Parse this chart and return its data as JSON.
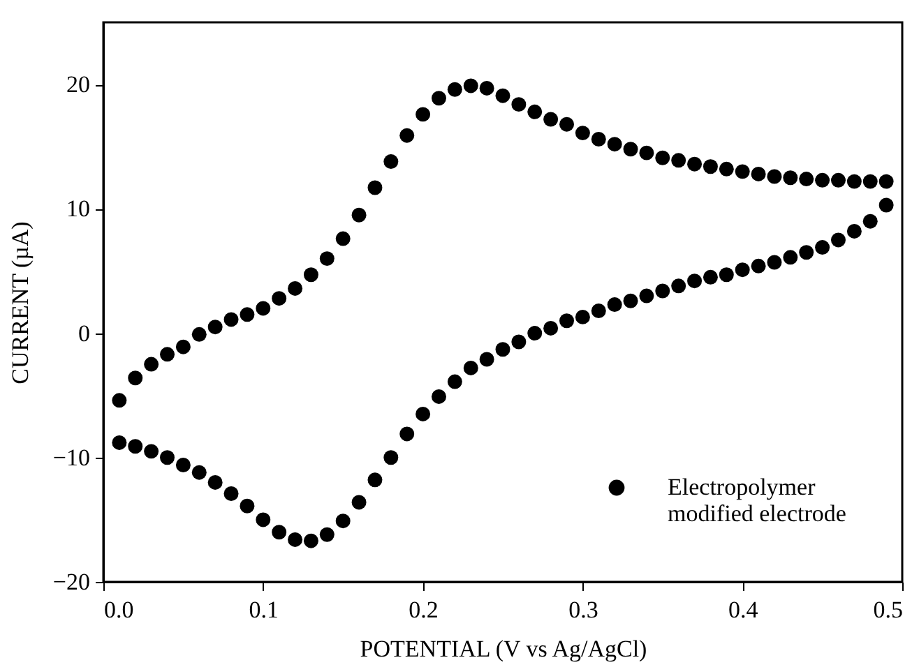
{
  "chart_data": {
    "type": "scatter",
    "xlabel": "POTENTIAL (V vs Ag/AgCl)",
    "ylabel": "CURRENT (µA)",
    "xlim": [
      0,
      0.5
    ],
    "xticks": [
      {
        "value": 0,
        "label": "0.0"
      },
      0.1,
      0.2,
      0.3,
      0.4,
      0.5
    ],
    "ylim": [
      -20,
      25
    ],
    "yticks": [
      -20,
      -10,
      0,
      10,
      20
    ],
    "grid": false,
    "legend": "bottom right",
    "marker": "circle",
    "series": [
      {
        "name": "Electropolymer\nmodified electrode",
        "color": "#000000",
        "x": [
          0.01,
          0.02,
          0.03,
          0.04,
          0.05,
          0.06,
          0.07,
          0.08,
          0.09,
          0.1,
          0.11,
          0.12,
          0.13,
          0.14,
          0.15,
          0.16,
          0.17,
          0.18,
          0.19,
          0.2,
          0.21,
          0.22,
          0.23,
          0.24,
          0.25,
          0.26,
          0.27,
          0.28,
          0.29,
          0.3,
          0.31,
          0.32,
          0.33,
          0.34,
          0.35,
          0.36,
          0.37,
          0.38,
          0.39,
          0.4,
          0.41,
          0.42,
          0.43,
          0.44,
          0.45,
          0.46,
          0.47,
          0.48,
          0.49,
          0.49,
          0.48,
          0.47,
          0.46,
          0.45,
          0.44,
          0.43,
          0.42,
          0.41,
          0.4,
          0.39,
          0.38,
          0.37,
          0.36,
          0.35,
          0.34,
          0.33,
          0.32,
          0.31,
          0.3,
          0.29,
          0.28,
          0.27,
          0.26,
          0.25,
          0.24,
          0.23,
          0.22,
          0.21,
          0.2,
          0.19,
          0.18,
          0.17,
          0.16,
          0.15,
          0.14,
          0.13,
          0.12,
          0.11,
          0.1,
          0.09,
          0.08,
          0.07,
          0.06,
          0.05,
          0.04,
          0.03,
          0.02,
          0.01
        ],
        "values": [
          -5.4,
          -3.6,
          -2.5,
          -1.7,
          -1.1,
          -0.1,
          0.5,
          1.1,
          1.5,
          2.0,
          2.8,
          3.6,
          4.7,
          6.0,
          7.6,
          9.5,
          11.7,
          13.8,
          15.9,
          17.6,
          18.9,
          19.6,
          19.9,
          19.7,
          19.1,
          18.4,
          17.8,
          17.2,
          16.8,
          16.1,
          15.6,
          15.2,
          14.8,
          14.5,
          14.1,
          13.9,
          13.6,
          13.4,
          13.2,
          13.0,
          12.8,
          12.6,
          12.5,
          12.4,
          12.3,
          12.3,
          12.2,
          12.2,
          12.2,
          10.3,
          9.0,
          8.2,
          7.5,
          6.9,
          6.5,
          6.1,
          5.7,
          5.4,
          5.1,
          4.7,
          4.5,
          4.2,
          3.8,
          3.4,
          3.0,
          2.6,
          2.3,
          1.8,
          1.3,
          1.0,
          0.4,
          0.0,
          -0.7,
          -1.3,
          -2.1,
          -2.8,
          -3.9,
          -5.1,
          -6.5,
          -8.1,
          -10.0,
          -11.8,
          -13.6,
          -15.1,
          -16.2,
          -16.7,
          -16.6,
          -16.0,
          -15.0,
          -13.9,
          -12.9,
          -12.0,
          -11.2,
          -10.6,
          -10.0,
          -9.5,
          -9.1,
          -8.8
        ]
      }
    ]
  }
}
